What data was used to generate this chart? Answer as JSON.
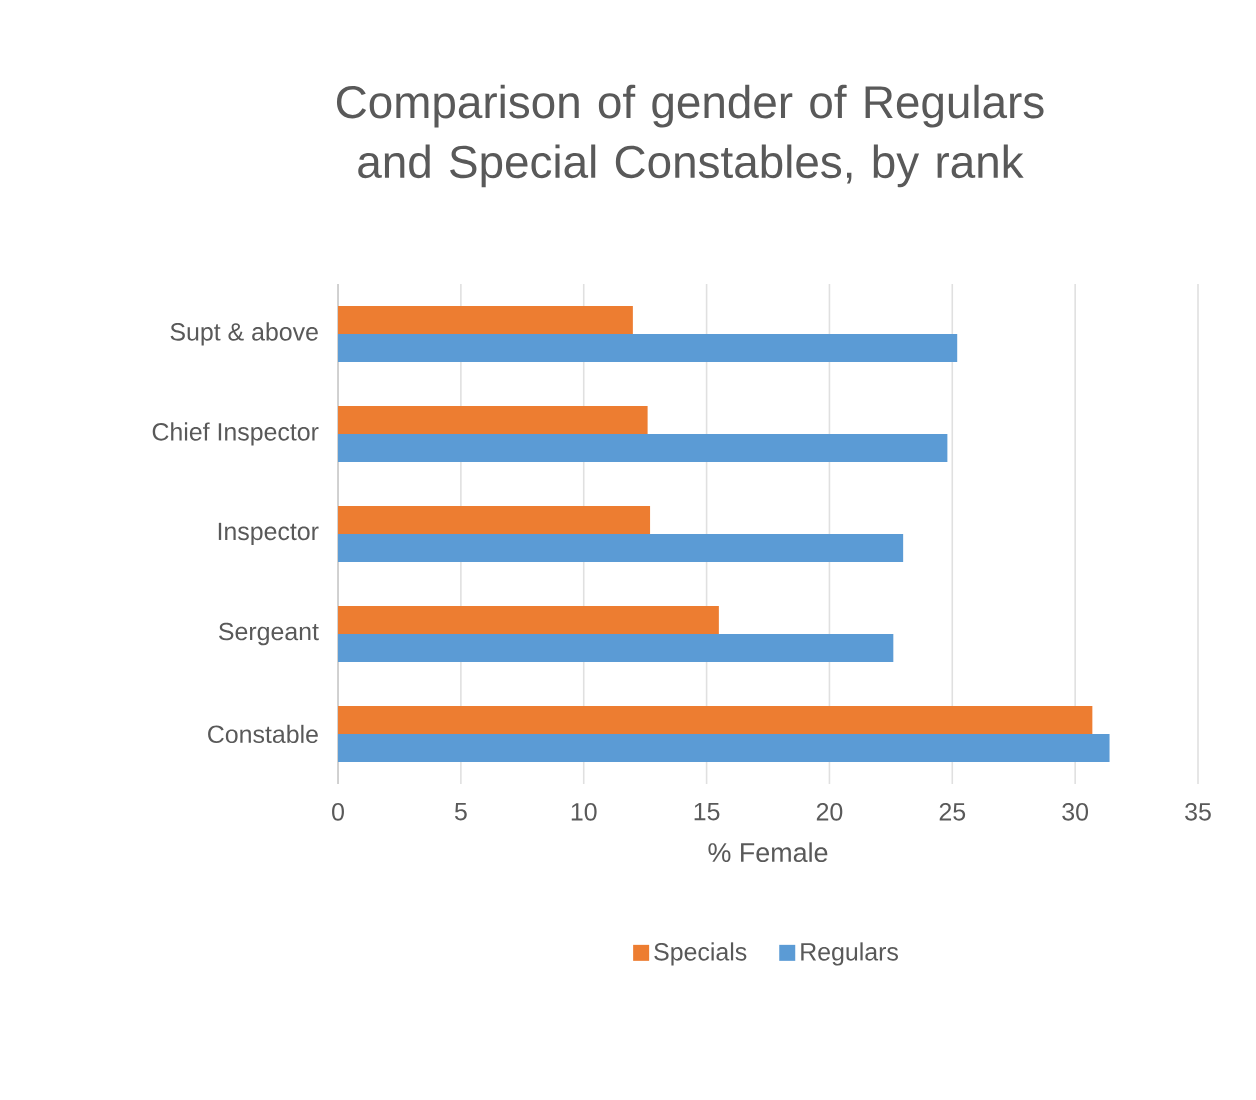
{
  "chart_data": {
    "type": "bar",
    "orientation": "horizontal",
    "title": "Comparison of gender of Regulars and Special Constables, by rank",
    "categories": [
      "Supt & above",
      "Chief Inspector",
      "Inspector",
      "Sergeant",
      "Constable"
    ],
    "series": [
      {
        "name": "Specials",
        "color": "#ed7d31",
        "values": [
          12.0,
          12.6,
          12.7,
          15.5,
          30.7
        ]
      },
      {
        "name": "Regulars",
        "color": "#5b9bd5",
        "values": [
          25.2,
          24.8,
          23.0,
          22.6,
          31.4
        ]
      }
    ],
    "xlabel": "% Female",
    "xlim": [
      0,
      35
    ],
    "xticks": [
      0,
      5,
      10,
      15,
      20,
      25,
      30,
      35
    ],
    "grid": "x",
    "legend": "bottom"
  }
}
